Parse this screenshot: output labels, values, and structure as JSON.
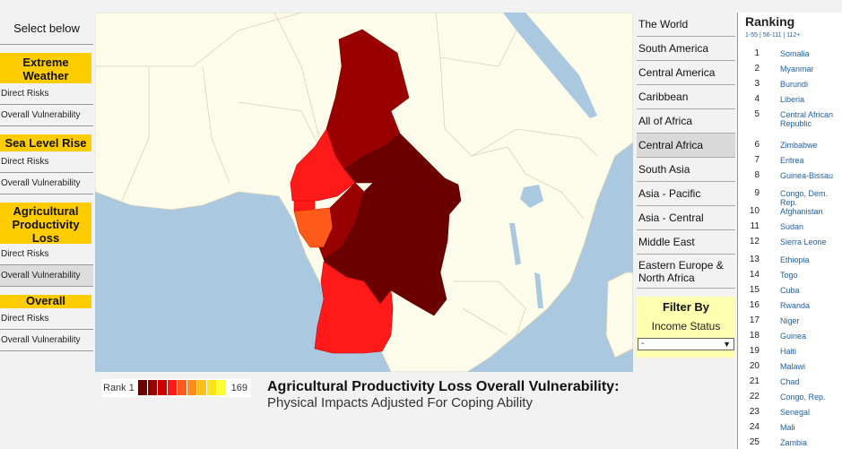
{
  "left": {
    "select_below": "Select below",
    "categories": [
      {
        "title": "Extreme Weather",
        "items": [
          "Direct Risks",
          "Overall Vulnerability"
        ]
      },
      {
        "title": "Sea Level Rise",
        "items": [
          "Direct Risks",
          "Overall Vulnerability"
        ]
      },
      {
        "title": "Agricultural Productivity Loss",
        "items": [
          "Direct Risks",
          "Overall Vulnerability"
        ]
      },
      {
        "title": "Overall",
        "items": [
          "Direct Risks",
          "Overall Vulnerability"
        ]
      }
    ]
  },
  "legend": {
    "low_label": "Rank 1",
    "high_label": "169",
    "colors": [
      "#6b0000",
      "#990000",
      "#cc0000",
      "#ff1a1a",
      "#ff5a1a",
      "#ff8c1a",
      "#ffbf1a",
      "#ffe21a",
      "#ffff33"
    ]
  },
  "map": {
    "title": "Agricultural Productivity Loss Overall Vulnerability:",
    "subtitle": "Physical Impacts Adjusted For Coping Ability"
  },
  "regions": [
    "The World",
    "South America",
    "Central America",
    "Caribbean",
    "All of Africa",
    "Central Africa",
    "South Asia",
    "Asia - Pacific",
    "Asia - Central",
    "Middle East",
    "Eastern Europe & North Africa"
  ],
  "active_region": "Central Africa",
  "filter": {
    "title": "Filter By",
    "subtitle": "Income Status",
    "selected": "-"
  },
  "ranking": {
    "title": "Ranking",
    "pages": "1-55 | 56-111 | 112+",
    "items": [
      {
        "rank": "1",
        "name": "Somalia"
      },
      {
        "rank": "2",
        "name": "Myanmar"
      },
      {
        "rank": "3",
        "name": "Burundi"
      },
      {
        "rank": "4",
        "name": "Liberia"
      },
      {
        "rank": "5",
        "name": "Central African Republic"
      },
      {
        "rank": "6",
        "name": "Zimbabwe"
      },
      {
        "rank": "7",
        "name": "Eritrea"
      },
      {
        "rank": "8",
        "name": "Guinea-Bissau"
      },
      {
        "rank": "9",
        "name": "Congo, Dem. Rep."
      },
      {
        "rank": "10",
        "name": "Afghanistan"
      },
      {
        "rank": "11",
        "name": "Sudan"
      },
      {
        "rank": "12",
        "name": "Sierra Leone"
      },
      {
        "rank": "13",
        "name": "Ethiopia"
      },
      {
        "rank": "14",
        "name": "Togo"
      },
      {
        "rank": "15",
        "name": "Cuba"
      },
      {
        "rank": "16",
        "name": "Rwanda"
      },
      {
        "rank": "17",
        "name": "Niger"
      },
      {
        "rank": "18",
        "name": "Guinea"
      },
      {
        "rank": "19",
        "name": "Haiti"
      },
      {
        "rank": "20",
        "name": "Malawi"
      },
      {
        "rank": "21",
        "name": "Chad"
      },
      {
        "rank": "22",
        "name": "Congo, Rep."
      },
      {
        "rank": "23",
        "name": "Senegal"
      },
      {
        "rank": "24",
        "name": "Mali"
      },
      {
        "rank": "25",
        "name": "Zambia"
      }
    ]
  }
}
